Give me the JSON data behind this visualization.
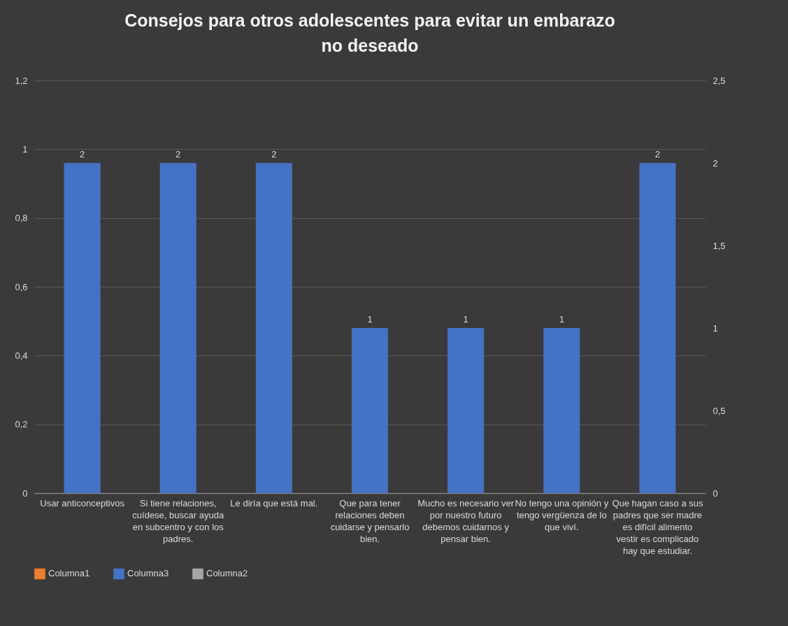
{
  "chart_data": {
    "type": "bar",
    "title": "Consejos para otros adolescentes para evitar un embarazo no deseado",
    "categories": [
      "Usar anticonceptivos",
      "Si tiene relaciones, cuídese, buscar ayuda en subcentro y con los padres.",
      "Le diría que está mal.",
      "Que para tener relaciones deben cuidarse y pensarlo bien.",
      "Mucho es necesario ver por nuestro futuro debemos cuidarnos y pensar bien.",
      "No tengo una opinión y tengo vergüenza de lo que viví.",
      "Que hagan caso a sus padres que ser madre es difícil alimento vestir es complicado hay que estudiar."
    ],
    "series": [
      {
        "name": "Columna1",
        "color": "#ed7d31",
        "values": [
          null,
          null,
          null,
          null,
          null,
          null,
          null
        ]
      },
      {
        "name": "Columna3",
        "axis": "y2",
        "color": "#4472c4",
        "values": [
          2,
          2,
          2,
          1,
          1,
          1,
          2
        ]
      },
      {
        "name": "Columna2",
        "type": "line",
        "color": "#a5a5a5",
        "values": [
          null,
          null,
          null,
          null,
          null,
          null,
          null
        ]
      }
    ],
    "ylim": [
      0,
      1.2
    ],
    "yticks": [
      0,
      {
        "value": 0.2,
        "label": "0,2"
      },
      {
        "value": 0.4,
        "label": "0,4"
      },
      {
        "value": 0.6,
        "label": "0,6"
      },
      {
        "value": 0.8,
        "label": "0,8"
      },
      1,
      {
        "value": 1.2,
        "label": "1,2"
      }
    ],
    "y2lim": [
      0,
      2.5
    ],
    "y2ticks": [
      0,
      {
        "value": 0.5,
        "label": "0,5"
      },
      1,
      {
        "value": 1.5,
        "label": "1,5"
      },
      2,
      {
        "value": 2.5,
        "label": "2,5"
      }
    ],
    "grid": "y",
    "legend": "bottom",
    "data_labels": true
  }
}
